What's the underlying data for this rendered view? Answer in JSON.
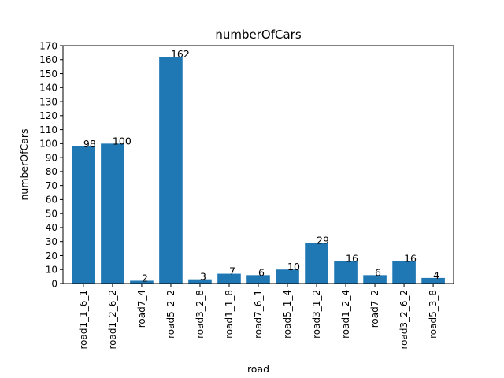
{
  "chart_data": {
    "type": "bar",
    "title": "numberOfCars",
    "xlabel": "road",
    "ylabel": "numberOfCars",
    "categories": [
      "road1_1_6_1",
      "road1_2_6_2",
      "road7_4",
      "road5_2_2",
      "road3_2_8",
      "road1_1_8",
      "road7_6_1",
      "road5_1_4",
      "road3_1_2",
      "road1_2_4",
      "road7_2",
      "road3_2_6_2",
      "road5_3_8"
    ],
    "values": [
      98,
      100,
      2,
      162,
      3,
      7,
      6,
      10,
      29,
      16,
      6,
      16,
      4
    ],
    "ylim": [
      0,
      170
    ],
    "yticks": [
      0,
      10,
      20,
      30,
      40,
      50,
      60,
      70,
      80,
      90,
      100,
      110,
      120,
      130,
      140,
      150,
      160,
      170
    ],
    "grid": false,
    "colors": {
      "bar": "#1f77b4",
      "axis": "#000000",
      "background": "#ffffff"
    }
  }
}
